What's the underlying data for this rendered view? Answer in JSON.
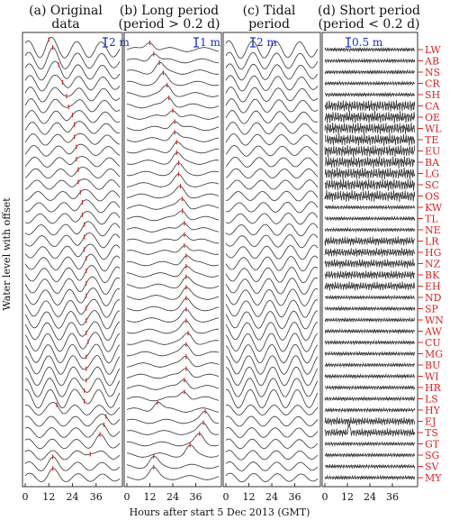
{
  "chart_data": {
    "type": "line",
    "ylabel": "Water level with offset",
    "xlabel": "Hours after start 5 Dec 2013 (GMT)",
    "xlim": [
      0,
      48
    ],
    "xticks": [
      "0",
      "12",
      "24",
      "36"
    ],
    "stations": [
      "LW",
      "AB",
      "NS",
      "CR",
      "SH",
      "CA",
      "OE",
      "WL",
      "TE",
      "EU",
      "BA",
      "LG",
      "SC",
      "OS",
      "KW",
      "TL",
      "NE",
      "LR",
      "HG",
      "NZ",
      "BK",
      "EH",
      "ND",
      "SP",
      "WN",
      "AW",
      "CU",
      "MG",
      "BU",
      "WI",
      "HR",
      "LS",
      "HY",
      "EJ",
      "TS",
      "GT",
      "SG",
      "SV",
      "MY"
    ],
    "surge_peak_hours": [
      12,
      14,
      17,
      19,
      21,
      22,
      24,
      25,
      25,
      26,
      26,
      27,
      27,
      28,
      29,
      29,
      30,
      30,
      30,
      31,
      31,
      31,
      31,
      31,
      31,
      31,
      32,
      31,
      31,
      31,
      30,
      30,
      16,
      41,
      40,
      38,
      33,
      14,
      14
    ],
    "panels": [
      {
        "title_line1": "(a) Original",
        "title_line2": "data",
        "scale": "2 m"
      },
      {
        "title_line1": "(b) Long period",
        "title_line2": "(period > 0.2 d)",
        "scale": "1 m"
      },
      {
        "title_line1": "(c) Tidal",
        "title_line2": "period",
        "scale": "2 m"
      },
      {
        "title_line1": "(d) Short period",
        "title_line2": "(period < 0.2 d)",
        "scale": "0.5 m"
      }
    ],
    "colors": {
      "trace": "#333333",
      "marker": "#e02020",
      "scale": "#1a2fd0",
      "station": "#e02020"
    }
  }
}
